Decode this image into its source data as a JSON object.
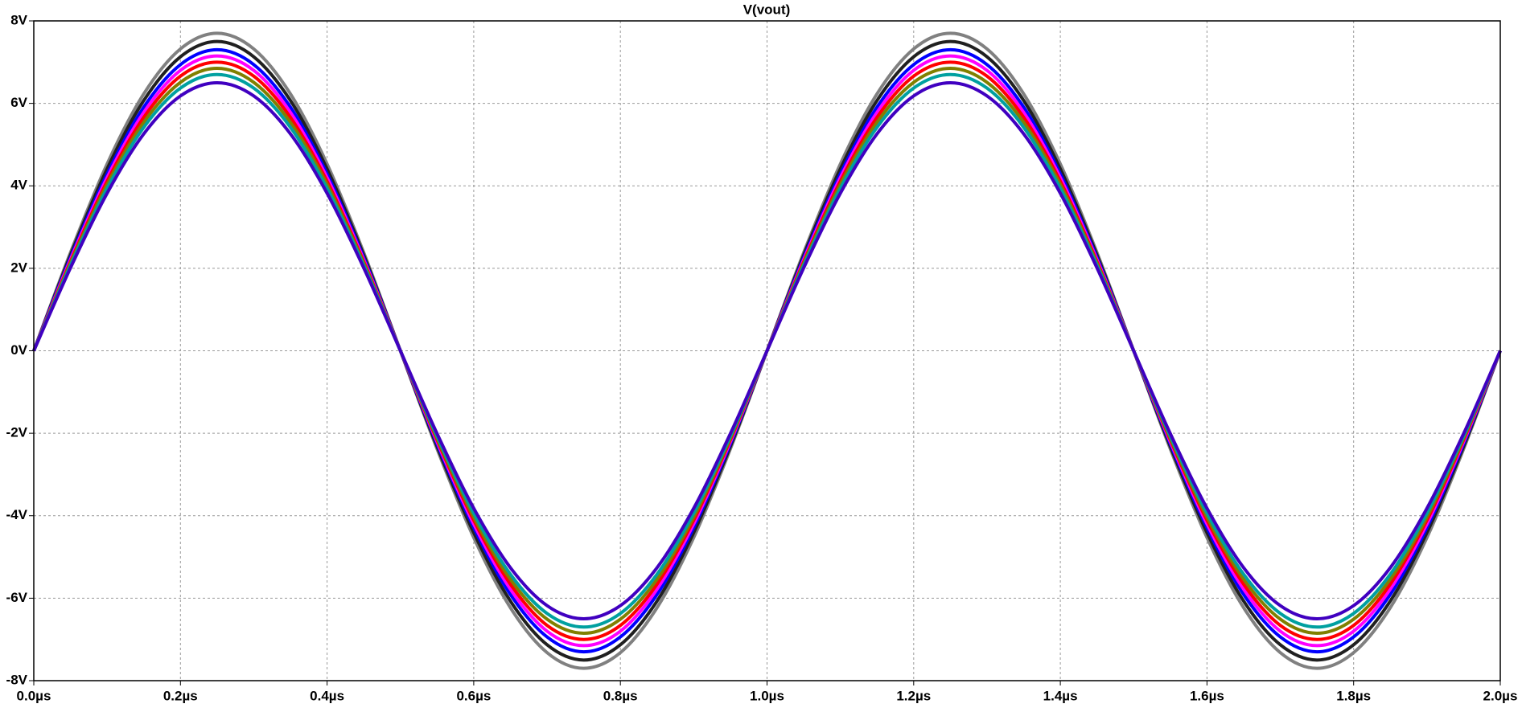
{
  "chart_data": {
    "type": "line",
    "title": "V(vout)",
    "title_color": "#ff0000",
    "x": [
      0,
      0.05,
      0.1,
      0.15,
      0.2,
      0.25,
      0.3,
      0.35,
      0.4,
      0.45,
      0.5,
      0.55,
      0.6,
      0.65,
      0.7,
      0.75,
      0.8,
      0.85,
      0.9,
      0.95,
      1.0,
      1.05,
      1.1,
      1.15,
      1.2,
      1.25,
      1.3,
      1.35,
      1.4,
      1.45,
      1.5,
      1.55,
      1.6,
      1.65,
      1.7,
      1.75,
      1.8,
      1.85,
      1.9,
      1.95,
      2.0
    ],
    "xlim": [
      0,
      2
    ],
    "ylim": [
      -8,
      8
    ],
    "xticks": [
      {
        "value": 0,
        "label": "0.0µs"
      },
      {
        "value": 0.2,
        "label": "0.2µs"
      },
      {
        "value": 0.4,
        "label": "0.4µs"
      },
      {
        "value": 0.6,
        "label": "0.6µs"
      },
      {
        "value": 0.8,
        "label": "0.8µs"
      },
      {
        "value": 1.0,
        "label": "1.0µs"
      },
      {
        "value": 1.2,
        "label": "1.2µs"
      },
      {
        "value": 1.4,
        "label": "1.4µs"
      },
      {
        "value": 1.6,
        "label": "1.6µs"
      },
      {
        "value": 1.8,
        "label": "1.8µs"
      },
      {
        "value": 2.0,
        "label": "2.0µs"
      }
    ],
    "yticks": [
      {
        "value": -8,
        "label": "-8V"
      },
      {
        "value": -6,
        "label": "-6V"
      },
      {
        "value": -4,
        "label": "-4V"
      },
      {
        "value": -2,
        "label": "-2V"
      },
      {
        "value": 0,
        "label": "0V"
      },
      {
        "value": 2,
        "label": "2V"
      },
      {
        "value": 4,
        "label": "4V"
      },
      {
        "value": 6,
        "label": "6V"
      },
      {
        "value": 8,
        "label": "8V"
      }
    ],
    "grid": true,
    "series": [
      {
        "color": "#808080",
        "values": [
          0,
          2.38,
          4.53,
          6.23,
          7.32,
          7.7,
          7.32,
          6.23,
          4.53,
          2.38,
          0,
          -2.38,
          -4.53,
          -6.23,
          -7.32,
          -7.7,
          -7.32,
          -6.23,
          -4.53,
          -2.38,
          0,
          2.38,
          4.53,
          6.23,
          7.32,
          7.7,
          7.32,
          6.23,
          4.53,
          2.38,
          0,
          -2.38,
          -4.53,
          -6.23,
          -7.32,
          -7.7,
          -7.32,
          -6.23,
          -4.53,
          -2.38,
          0
        ]
      },
      {
        "color": "#202020",
        "values": [
          0,
          2.32,
          4.41,
          6.07,
          7.13,
          7.5,
          7.13,
          6.07,
          4.41,
          2.32,
          0,
          -2.32,
          -4.41,
          -6.07,
          -7.13,
          -7.5,
          -7.13,
          -6.07,
          -4.41,
          -2.32,
          0,
          2.32,
          4.41,
          6.07,
          7.13,
          7.5,
          7.13,
          6.07,
          4.41,
          2.32,
          0,
          -2.32,
          -4.41,
          -6.07,
          -7.13,
          -7.5,
          -7.13,
          -6.07,
          -4.41,
          -2.32,
          0
        ]
      },
      {
        "color": "#0000ff",
        "values": [
          0,
          2.26,
          4.29,
          5.91,
          6.94,
          7.3,
          6.94,
          5.91,
          4.29,
          2.26,
          0,
          -2.26,
          -4.29,
          -5.91,
          -6.94,
          -7.3,
          -6.94,
          -5.91,
          -4.29,
          -2.26,
          0,
          2.26,
          4.29,
          5.91,
          6.94,
          7.3,
          6.94,
          5.91,
          4.29,
          2.26,
          0,
          -2.26,
          -4.29,
          -5.91,
          -6.94,
          -7.3,
          -6.94,
          -5.91,
          -4.29,
          -2.26,
          0
        ]
      },
      {
        "color": "#ff00ff",
        "values": [
          0,
          2.21,
          4.2,
          5.78,
          6.8,
          7.15,
          6.8,
          5.78,
          4.2,
          2.21,
          0,
          -2.21,
          -4.2,
          -5.78,
          -6.8,
          -7.15,
          -6.8,
          -5.78,
          -4.2,
          -2.21,
          0,
          2.21,
          4.2,
          5.78,
          6.8,
          7.15,
          6.8,
          5.78,
          4.2,
          2.21,
          0,
          -2.21,
          -4.2,
          -5.78,
          -6.8,
          -7.15,
          -6.8,
          -5.78,
          -4.2,
          -2.21,
          0
        ]
      },
      {
        "color": "#ff0000",
        "values": [
          0,
          2.16,
          4.11,
          5.66,
          6.66,
          7.0,
          6.66,
          5.66,
          4.11,
          2.16,
          0,
          -2.16,
          -4.11,
          -5.66,
          -6.66,
          -7.0,
          -6.66,
          -5.66,
          -4.11,
          -2.16,
          0,
          2.16,
          4.11,
          5.66,
          6.66,
          7.0,
          6.66,
          5.66,
          4.11,
          2.16,
          0,
          -2.16,
          -4.11,
          -5.66,
          -6.66,
          -7.0,
          -6.66,
          -5.66,
          -4.11,
          -2.16,
          0
        ]
      },
      {
        "color": "#808000",
        "values": [
          0,
          2.12,
          4.03,
          5.54,
          6.51,
          6.85,
          6.51,
          5.54,
          4.03,
          2.12,
          0,
          -2.12,
          -4.03,
          -5.54,
          -6.51,
          -6.85,
          -6.51,
          -5.54,
          -4.03,
          -2.12,
          0,
          2.12,
          4.03,
          5.54,
          6.51,
          6.85,
          6.51,
          5.54,
          4.03,
          2.12,
          0,
          -2.12,
          -4.03,
          -5.54,
          -6.51,
          -6.85,
          -6.51,
          -5.54,
          -4.03,
          -2.12,
          0
        ]
      },
      {
        "color": "#00a0a0",
        "values": [
          0,
          2.07,
          3.94,
          5.42,
          6.37,
          6.7,
          6.37,
          5.42,
          3.94,
          2.07,
          0,
          -2.07,
          -3.94,
          -5.42,
          -6.37,
          -6.7,
          -6.37,
          -5.42,
          -3.94,
          -2.07,
          0,
          2.07,
          3.94,
          5.42,
          6.37,
          6.7,
          6.37,
          5.42,
          3.94,
          2.07,
          0,
          -2.07,
          -3.94,
          -5.42,
          -6.37,
          -6.7,
          -6.37,
          -5.42,
          -3.94,
          -2.07,
          0
        ]
      },
      {
        "color": "#4000c0",
        "values": [
          0,
          2.01,
          3.82,
          5.26,
          6.18,
          6.5,
          6.18,
          5.26,
          3.82,
          2.01,
          0,
          -2.01,
          -3.82,
          -5.26,
          -6.18,
          -6.5,
          -6.18,
          -5.26,
          -3.82,
          -2.01,
          0,
          2.01,
          3.82,
          5.26,
          6.18,
          6.5,
          6.18,
          5.26,
          3.82,
          2.01,
          0,
          -2.01,
          -3.82,
          -5.26,
          -6.18,
          -6.5,
          -6.18,
          -5.26,
          -3.82,
          -2.01,
          0
        ]
      }
    ]
  }
}
